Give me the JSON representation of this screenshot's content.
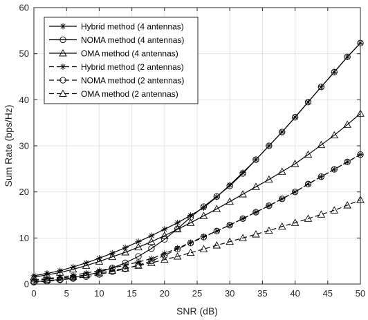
{
  "chart_data": {
    "type": "line",
    "xlabel": "SNR (dB)",
    "ylabel": "Sum Rate (bps/Hz)",
    "xlim": [
      0,
      50
    ],
    "ylim": [
      0,
      60
    ],
    "xticks": [
      0,
      5,
      10,
      15,
      20,
      25,
      30,
      35,
      40,
      45,
      50
    ],
    "yticks": [
      0,
      10,
      20,
      30,
      40,
      50,
      60
    ],
    "grid": true,
    "legend_position": "top-left",
    "x": [
      0,
      2,
      4,
      6,
      8,
      10,
      12,
      14,
      16,
      18,
      20,
      22,
      24,
      26,
      28,
      30,
      32,
      34,
      36,
      38,
      40,
      42,
      44,
      46,
      48,
      50
    ],
    "series": [
      {
        "name": "Hybrid method (4 antennas)",
        "marker": "asterisk",
        "line": "solid",
        "values": [
          1.8,
          2.3,
          2.9,
          3.7,
          4.6,
          5.6,
          6.7,
          7.9,
          9.2,
          10.5,
          11.9,
          13.3,
          14.9,
          16.6,
          18.9,
          21.5,
          24.2,
          27.0,
          30.0,
          33.0,
          36.2,
          39.5,
          42.8,
          46.0,
          49.3,
          52.3
        ]
      },
      {
        "name": "NOMA method (4 antennas)",
        "marker": "circle",
        "line": "solid",
        "values": [
          0.5,
          0.7,
          1.0,
          1.4,
          1.9,
          2.6,
          3.5,
          4.6,
          6.0,
          7.7,
          9.7,
          12.0,
          14.5,
          16.8,
          19.0,
          21.3,
          24.0,
          27.0,
          30.0,
          33.0,
          36.2,
          39.5,
          42.8,
          46.0,
          49.3,
          52.3
        ]
      },
      {
        "name": "OMA method (4 antennas)",
        "marker": "triangle",
        "line": "solid",
        "values": [
          1.5,
          2.0,
          2.5,
          3.2,
          4.0,
          4.9,
          5.9,
          6.9,
          8.0,
          9.2,
          10.5,
          11.9,
          13.3,
          14.8,
          16.3,
          17.9,
          19.5,
          21.1,
          22.7,
          24.4,
          26.1,
          28.1,
          30.2,
          32.3,
          34.6,
          37.0
        ]
      },
      {
        "name": "Hybrid method (2 antennas)",
        "marker": "asterisk",
        "line": "dashed",
        "values": [
          0.9,
          1.2,
          1.5,
          1.9,
          2.4,
          2.9,
          3.5,
          4.1,
          4.8,
          5.5,
          6.6,
          7.8,
          9.0,
          10.3,
          11.5,
          12.8,
          14.2,
          15.6,
          17.0,
          18.5,
          20.0,
          21.7,
          23.3,
          24.9,
          26.5,
          28.1
        ]
      },
      {
        "name": "NOMA method (2 antennas)",
        "marker": "circle",
        "line": "dashed",
        "values": [
          0.4,
          0.6,
          0.9,
          1.2,
          1.6,
          2.1,
          2.7,
          3.3,
          4.1,
          5.0,
          6.2,
          7.6,
          8.9,
          10.2,
          11.5,
          12.8,
          14.2,
          15.6,
          17.0,
          18.5,
          20.0,
          21.7,
          23.3,
          24.9,
          26.5,
          28.1
        ]
      },
      {
        "name": "OMA method (2 antennas)",
        "marker": "triangle",
        "line": "dashed",
        "values": [
          0.8,
          1.0,
          1.3,
          1.6,
          2.0,
          2.4,
          2.9,
          3.4,
          4.0,
          4.6,
          5.3,
          6.0,
          6.8,
          7.6,
          8.4,
          9.2,
          10.0,
          10.8,
          11.6,
          12.5,
          13.3,
          14.2,
          15.1,
          16.0,
          17.1,
          18.3
        ]
      }
    ]
  }
}
